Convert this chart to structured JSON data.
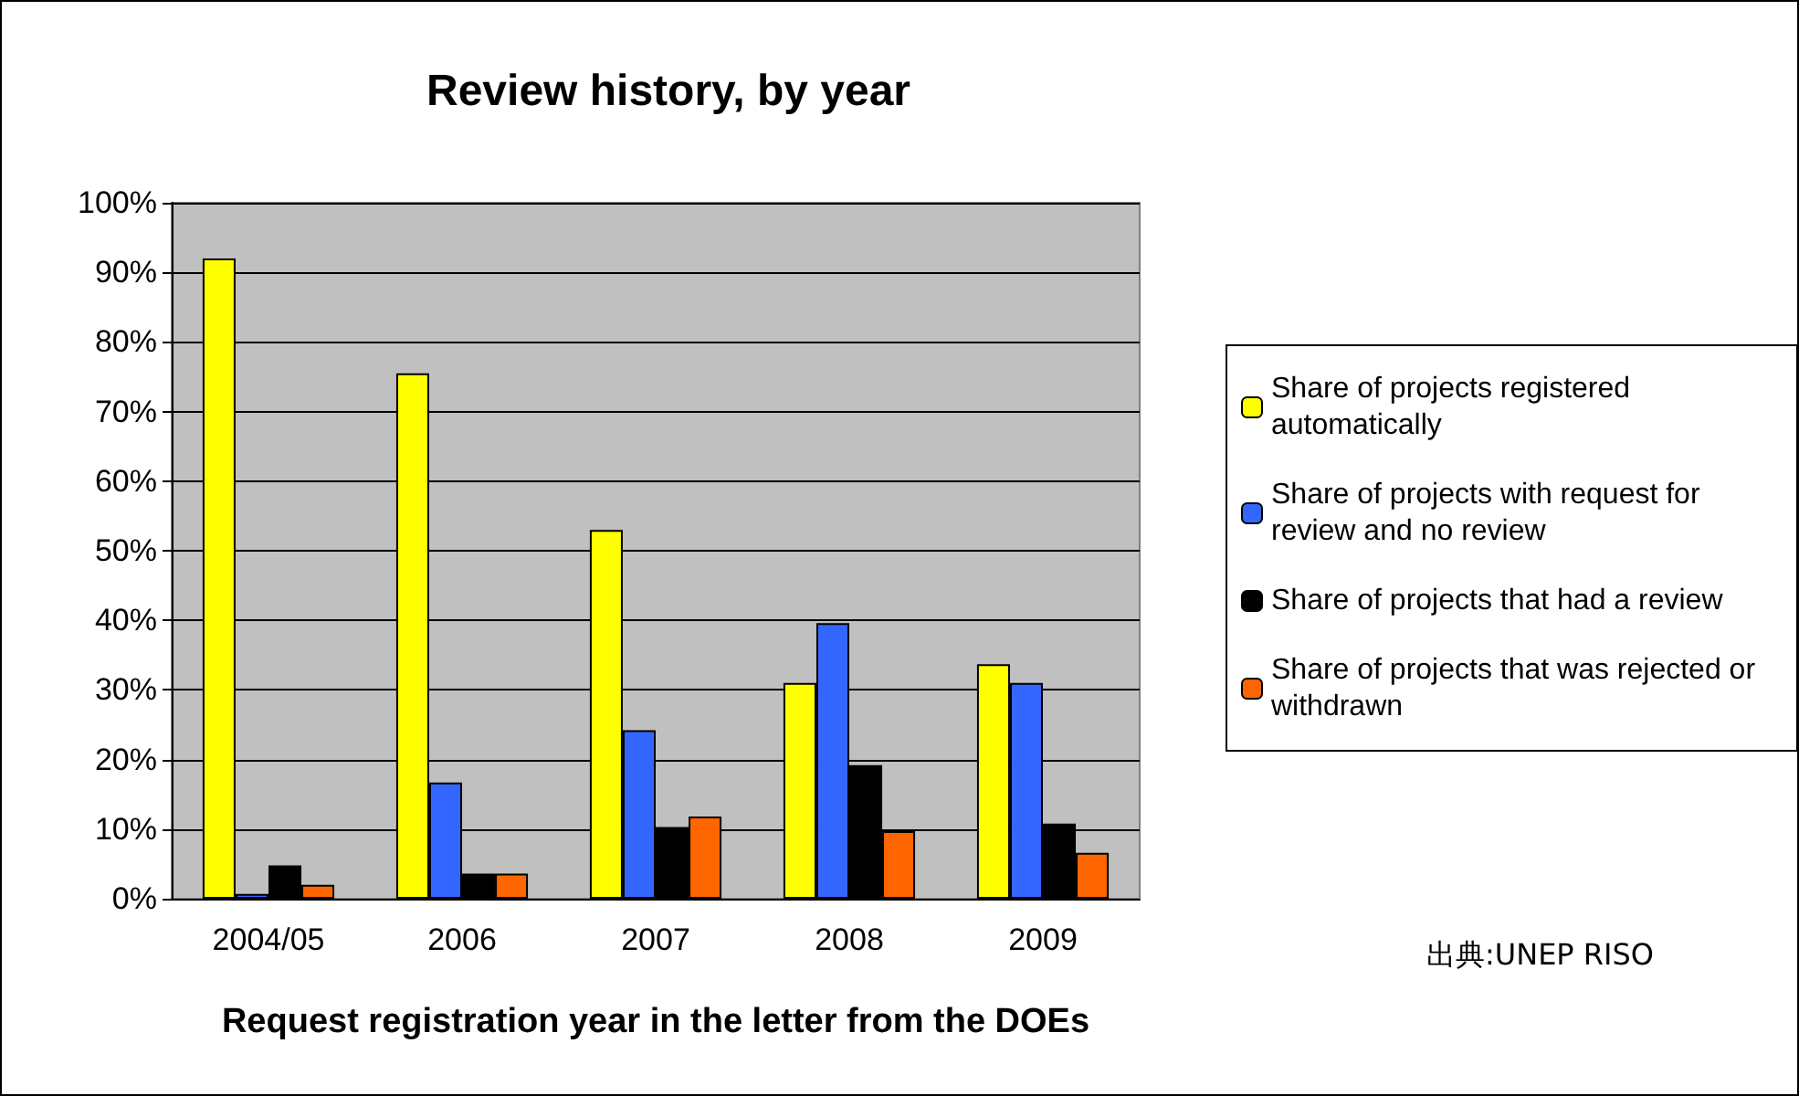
{
  "chart_data": {
    "type": "bar",
    "title": "Review history, by year",
    "xlabel": "Request registration year in the letter from the DOEs",
    "categories": [
      "2004/05",
      "2006",
      "2007",
      "2008",
      "2009"
    ],
    "series": [
      {
        "name": "Share of projects registered automatically",
        "color": "#ffff00",
        "values": [
          92,
          75.5,
          53,
          31,
          33.7
        ]
      },
      {
        "name": "Share of projects with request for review and no review",
        "color": "#3366ff",
        "values": [
          0.7,
          16.7,
          24.2,
          39.6,
          31
        ]
      },
      {
        "name": "Share of projects that had a review",
        "color": "#000000",
        "values": [
          4.8,
          3.6,
          10.3,
          19.2,
          10.8
        ]
      },
      {
        "name": "Share of projects that was rejected or withdrawn",
        "color": "#ff6600",
        "values": [
          2,
          3.6,
          11.8,
          9.7,
          6.6
        ]
      }
    ],
    "ylim": [
      0,
      100
    ],
    "yticks": [
      {
        "value": 0,
        "label": "0%"
      },
      {
        "value": 10,
        "label": "10%"
      },
      {
        "value": 20,
        "label": "20%"
      },
      {
        "value": 30,
        "label": "30%"
      },
      {
        "value": 40,
        "label": "40%"
      },
      {
        "value": 50,
        "label": "50%"
      },
      {
        "value": 60,
        "label": "60%"
      },
      {
        "value": 70,
        "label": "70%"
      },
      {
        "value": 80,
        "label": "80%"
      },
      {
        "value": 90,
        "label": "90%"
      },
      {
        "value": 100,
        "label": "100%"
      }
    ],
    "grid": "y",
    "legend": "right",
    "annotations": [
      "出典:UNEP RISO"
    ]
  }
}
